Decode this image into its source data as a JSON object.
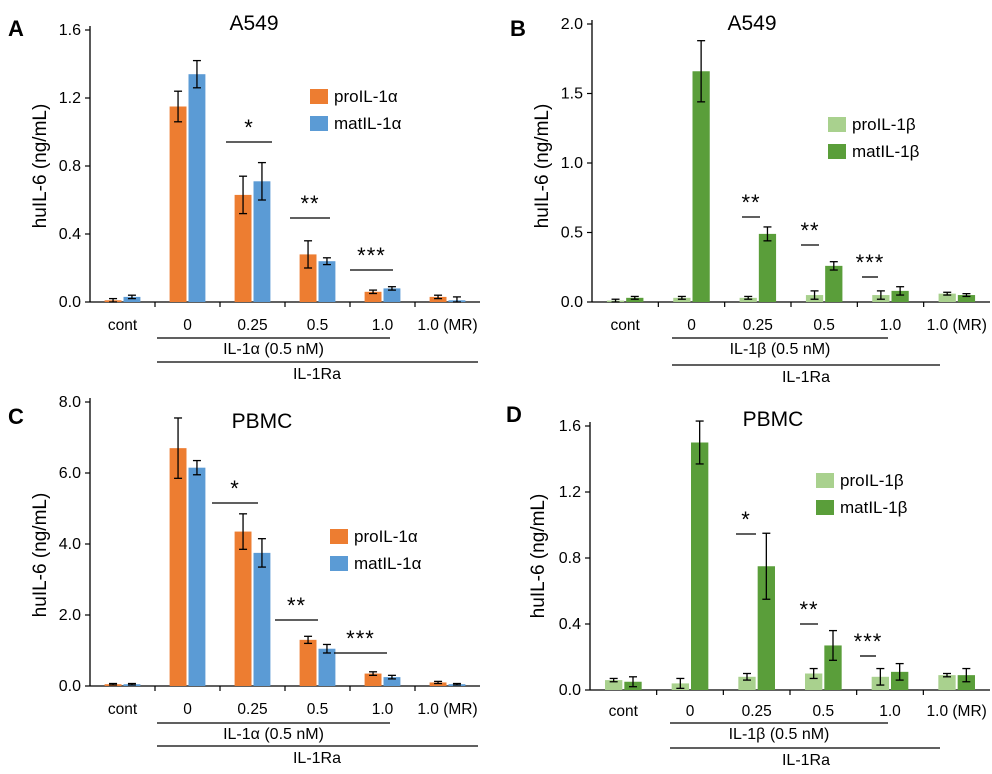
{
  "charts": [
    {
      "panel": "A",
      "title": "A549",
      "ylabel": "huIL-6 (ng/mL)",
      "yticks": [
        "0.0",
        "0.4",
        "0.8",
        "1.2",
        "1.6"
      ],
      "categories": [
        "cont",
        "0",
        "0.25",
        "0.5",
        "1.0",
        "1.0 (MR)"
      ],
      "legend": [
        "proIL-1α",
        "matIL-1α"
      ],
      "group1": "IL-1α (0.5 nM)",
      "group2": "IL-1Ra",
      "stars": [
        "*",
        "**",
        "***"
      ],
      "colors": [
        "#ed7d31",
        "#5b9bd5"
      ]
    },
    {
      "panel": "B",
      "title": "A549",
      "ylabel": "huIL-6 (ng/mL)",
      "yticks": [
        "0.0",
        "0.5",
        "1.0",
        "1.5",
        "2.0"
      ],
      "categories": [
        "cont",
        "0",
        "0.25",
        "0.5",
        "1.0",
        "1.0 (MR)"
      ],
      "legend": [
        "proIL-1β",
        "matIL-1β"
      ],
      "group1": "IL-1β (0.5 nM)",
      "group2": "IL-1Ra",
      "stars": [
        "**",
        "**",
        "***"
      ],
      "colors": [
        "#a9d18e",
        "#5a9e3a"
      ]
    },
    {
      "panel": "C",
      "title": "PBMC",
      "ylabel": "huIL-6 (ng/mL)",
      "yticks": [
        "0.0",
        "2.0",
        "4.0",
        "6.0",
        "8.0"
      ],
      "categories": [
        "cont",
        "0",
        "0.25",
        "0.5",
        "1.0",
        "1.0 (MR)"
      ],
      "legend": [
        "proIL-1α",
        "matIL-1α"
      ],
      "group1": "IL-1α (0.5 nM)",
      "group2": "IL-1Ra",
      "stars": [
        "*",
        "**",
        "***"
      ],
      "colors": [
        "#ed7d31",
        "#5b9bd5"
      ]
    },
    {
      "panel": "D",
      "title": "PBMC",
      "ylabel": "huIL-6 (ng/mL)",
      "yticks": [
        "0.0",
        "0.4",
        "0.8",
        "1.2",
        "1.6"
      ],
      "categories": [
        "cont",
        "0",
        "0.25",
        "0.5",
        "1.0",
        "1.0 (MR)"
      ],
      "legend": [
        "proIL-1β",
        "matIL-1β"
      ],
      "group1": "IL-1β (0.5 nM)",
      "group2": "IL-1Ra",
      "stars": [
        "*",
        "**",
        "***"
      ],
      "colors": [
        "#a9d18e",
        "#5a9e3a"
      ]
    }
  ],
  "chart_data": [
    {
      "type": "bar",
      "title": "A549",
      "ylabel": "huIL-6 (ng/mL)",
      "ylim": [
        0,
        1.6
      ],
      "categories": [
        "cont",
        "0",
        "0.25",
        "0.5",
        "1.0",
        "1.0 (MR)"
      ],
      "series": [
        {
          "name": "proIL-1α",
          "values": [
            0.01,
            1.15,
            0.63,
            0.28,
            0.06,
            0.03
          ],
          "errors": [
            0.01,
            0.09,
            0.11,
            0.08,
            0.01,
            0.01
          ]
        },
        {
          "name": "matIL-1α",
          "values": [
            0.03,
            1.34,
            0.71,
            0.24,
            0.08,
            0.01
          ],
          "errors": [
            0.01,
            0.08,
            0.11,
            0.02,
            0.01,
            0.02
          ]
        }
      ]
    },
    {
      "type": "bar",
      "title": "A549",
      "ylabel": "huIL-6 (ng/mL)",
      "ylim": [
        0,
        2.0
      ],
      "categories": [
        "cont",
        "0",
        "0.25",
        "0.5",
        "1.0",
        "1.0 (MR)"
      ],
      "series": [
        {
          "name": "proIL-1β",
          "values": [
            0.01,
            0.03,
            0.03,
            0.05,
            0.05,
            0.06
          ],
          "errors": [
            0.01,
            0.01,
            0.01,
            0.03,
            0.03,
            0.01
          ]
        },
        {
          "name": "matIL-1β",
          "values": [
            0.03,
            1.66,
            0.49,
            0.26,
            0.08,
            0.05
          ],
          "errors": [
            0.01,
            0.22,
            0.05,
            0.03,
            0.03,
            0.01
          ]
        }
      ]
    },
    {
      "type": "bar",
      "title": "PBMC",
      "ylabel": "huIL-6 (ng/mL)",
      "ylim": [
        0,
        8.0
      ],
      "categories": [
        "cont",
        "0",
        "0.25",
        "0.5",
        "1.0",
        "1.0 (MR)"
      ],
      "series": [
        {
          "name": "proIL-1α",
          "values": [
            0.05,
            6.7,
            4.35,
            1.3,
            0.35,
            0.1
          ],
          "errors": [
            0.02,
            0.85,
            0.5,
            0.1,
            0.05,
            0.03
          ]
        },
        {
          "name": "matIL-1α",
          "values": [
            0.05,
            6.15,
            3.75,
            1.05,
            0.25,
            0.05
          ],
          "errors": [
            0.02,
            0.2,
            0.4,
            0.12,
            0.05,
            0.02
          ]
        }
      ]
    },
    {
      "type": "bar",
      "title": "PBMC",
      "ylabel": "huIL-6 (ng/mL)",
      "ylim": [
        0,
        1.6
      ],
      "categories": [
        "cont",
        "0",
        "0.25",
        "0.5",
        "1.0",
        "1.0 (MR)"
      ],
      "series": [
        {
          "name": "proIL-1β",
          "values": [
            0.06,
            0.04,
            0.08,
            0.1,
            0.08,
            0.09
          ],
          "errors": [
            0.01,
            0.03,
            0.02,
            0.03,
            0.05,
            0.01
          ]
        },
        {
          "name": "matIL-1β",
          "values": [
            0.05,
            1.5,
            0.75,
            0.27,
            0.11,
            0.09
          ],
          "errors": [
            0.03,
            0.13,
            0.2,
            0.09,
            0.05,
            0.04
          ]
        }
      ]
    }
  ]
}
